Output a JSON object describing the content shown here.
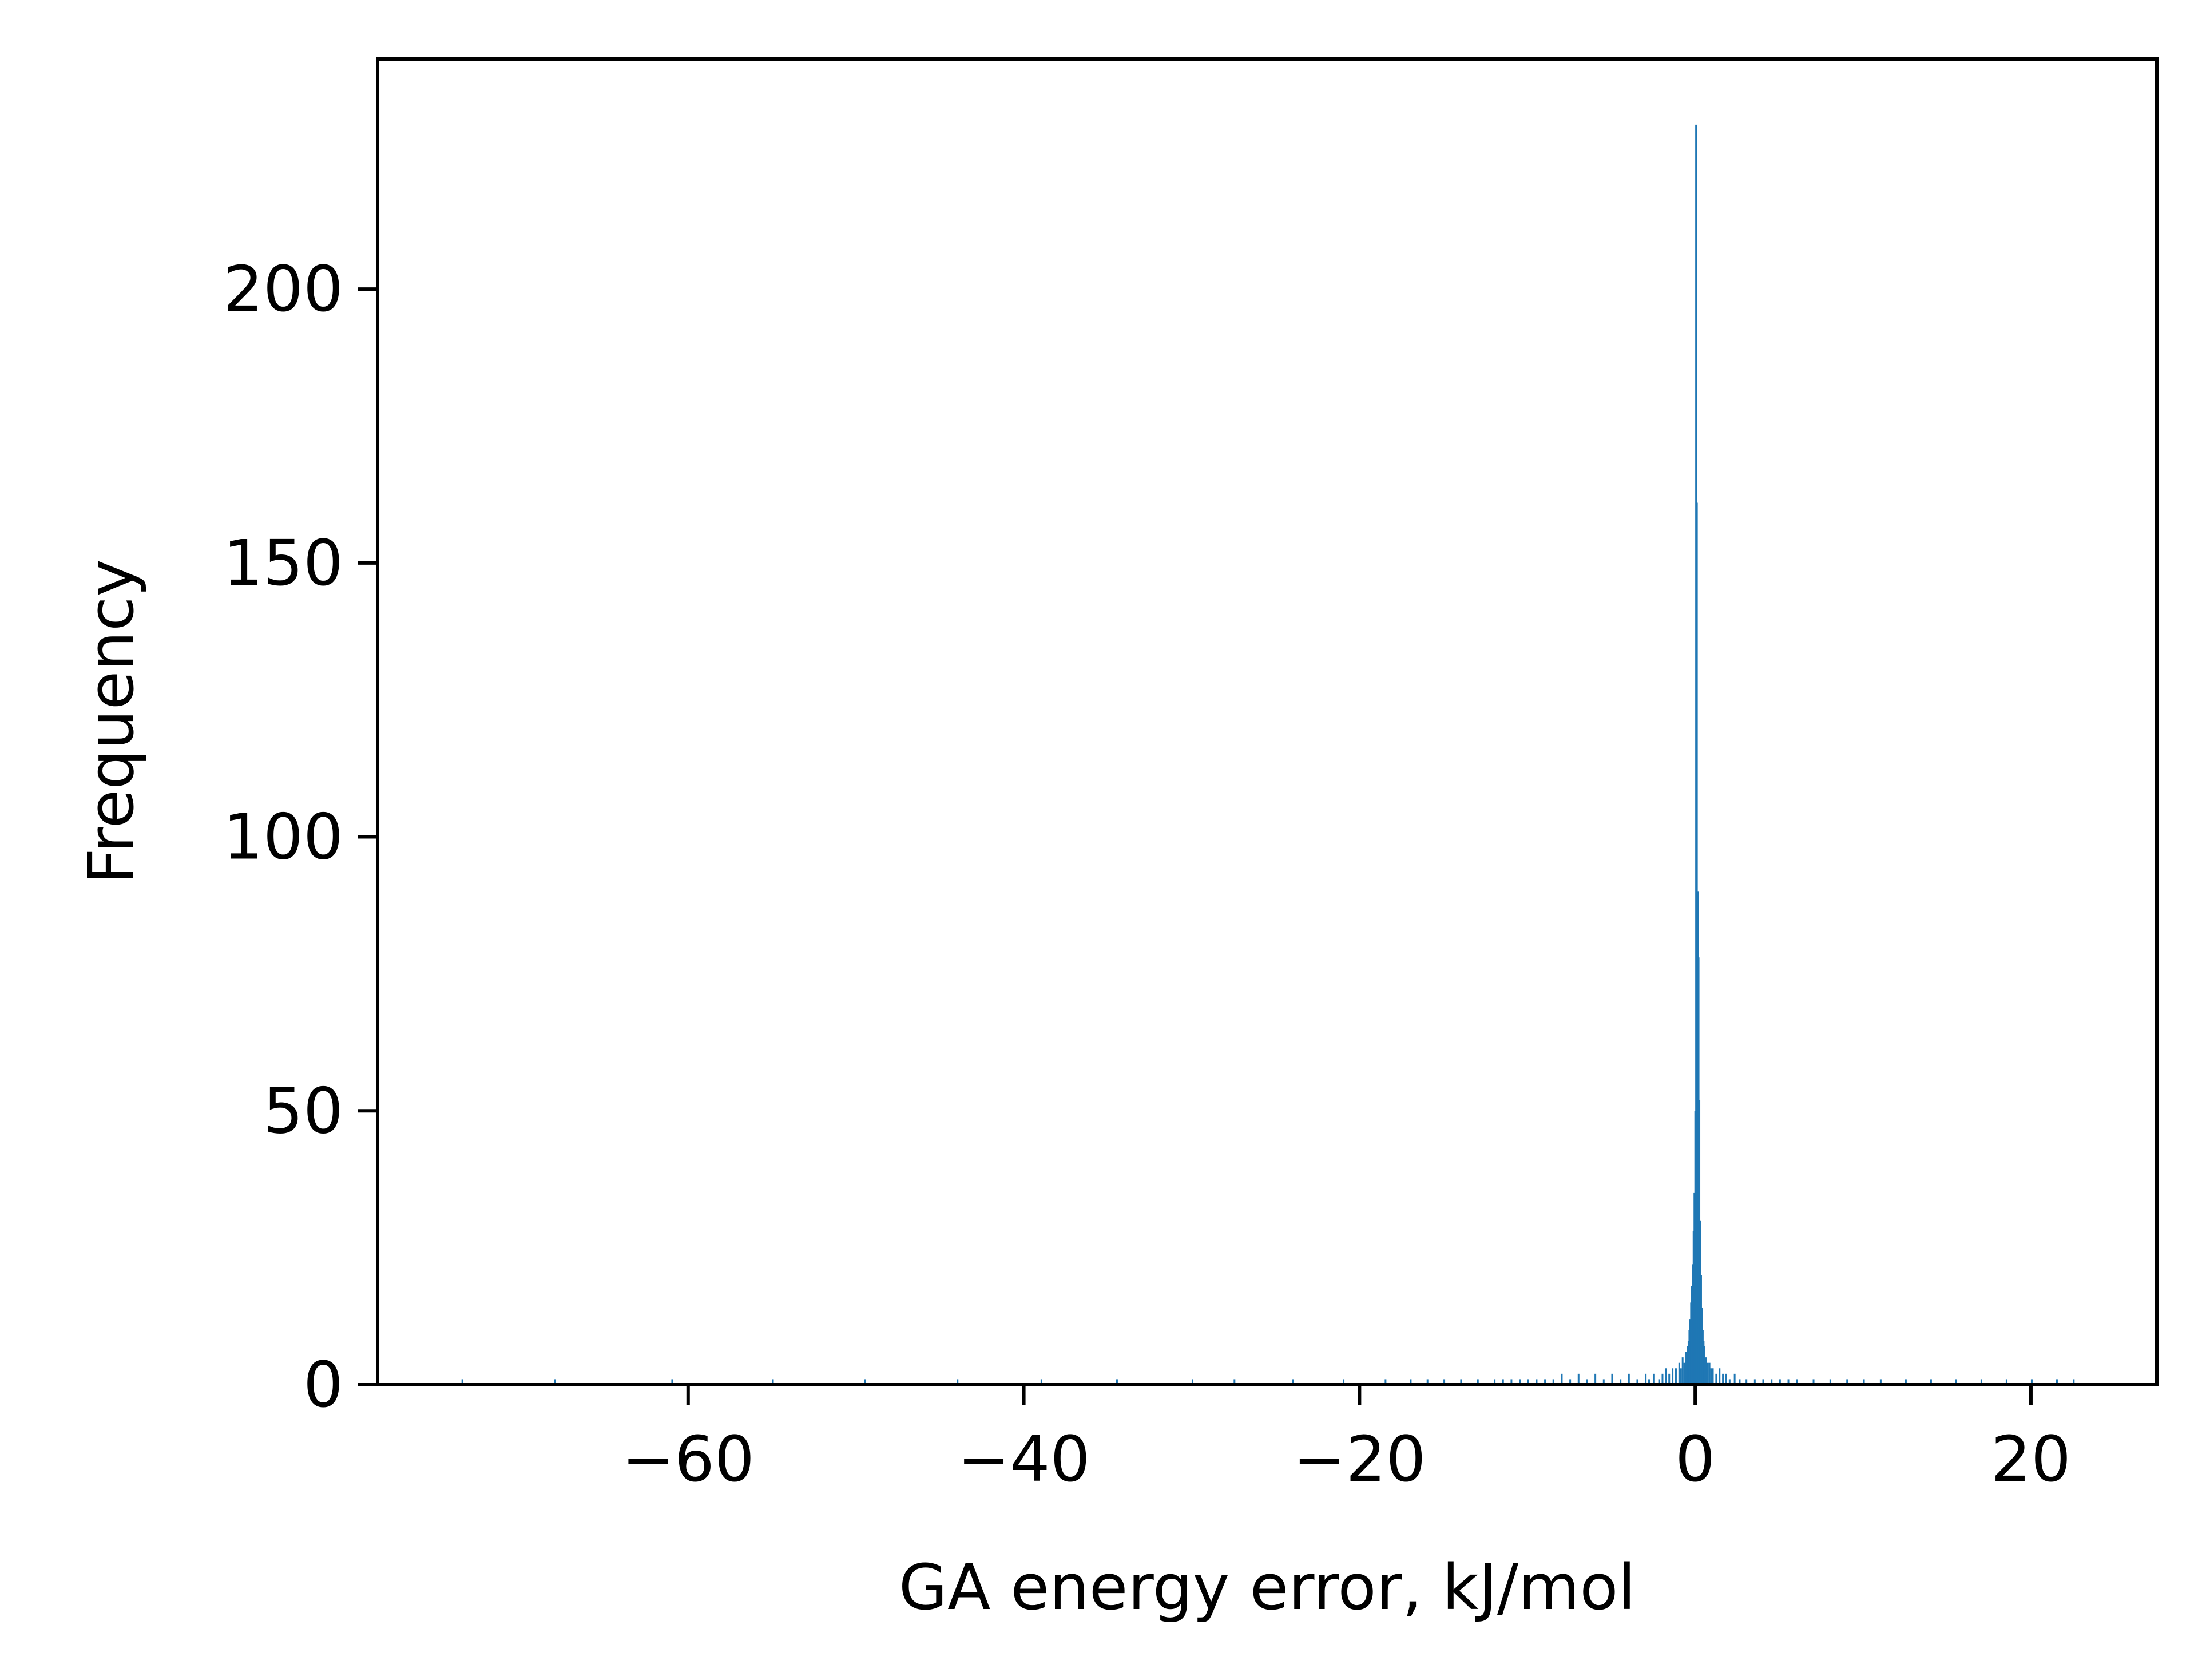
{
  "chart_data": {
    "type": "bar",
    "title": "",
    "xlabel": "GA energy error, kJ/mol",
    "ylabel": "Frequency",
    "xlim": [
      -78.5,
      27.5
    ],
    "ylim": [
      0,
      242
    ],
    "grid": false,
    "legend": "none",
    "xticks": [
      {
        "value": -60,
        "label": "−60"
      },
      {
        "value": -40,
        "label": "−40"
      },
      {
        "value": -20,
        "label": "−20"
      },
      {
        "value": 0,
        "label": "0"
      },
      {
        "value": 20,
        "label": "20"
      }
    ],
    "yticks": [
      {
        "value": 0,
        "label": "0"
      },
      {
        "value": 50,
        "label": "50"
      },
      {
        "value": 100,
        "label": "100"
      },
      {
        "value": 150,
        "label": "150"
      },
      {
        "value": 200,
        "label": "200"
      }
    ],
    "bin_width": 0.05,
    "series": [
      {
        "color": "#1f77b4",
        "bins": [
          [
            -73.5,
            1
          ],
          [
            -68.0,
            1
          ],
          [
            -61.0,
            1
          ],
          [
            -55.0,
            1
          ],
          [
            -49.5,
            1
          ],
          [
            -44.0,
            1
          ],
          [
            -39.0,
            1
          ],
          [
            -34.5,
            1
          ],
          [
            -30.0,
            1
          ],
          [
            -27.5,
            1
          ],
          [
            -24.0,
            1
          ],
          [
            -21.0,
            1
          ],
          [
            -18.5,
            1
          ],
          [
            -17.0,
            1
          ],
          [
            -16.0,
            1
          ],
          [
            -15.0,
            1
          ],
          [
            -14.0,
            1
          ],
          [
            -13.0,
            1
          ],
          [
            -12.0,
            1
          ],
          [
            -11.5,
            1
          ],
          [
            -11.0,
            1
          ],
          [
            -10.5,
            1
          ],
          [
            -10.0,
            1
          ],
          [
            -9.5,
            1
          ],
          [
            -9.0,
            1
          ],
          [
            -8.5,
            1
          ],
          [
            -8.0,
            2
          ],
          [
            -7.5,
            1
          ],
          [
            -7.0,
            2
          ],
          [
            -6.5,
            1
          ],
          [
            -6.0,
            2
          ],
          [
            -5.5,
            1
          ],
          [
            -5.0,
            2
          ],
          [
            -4.5,
            1
          ],
          [
            -4.0,
            2
          ],
          [
            -3.5,
            1
          ],
          [
            -3.0,
            2
          ],
          [
            -2.8,
            1
          ],
          [
            -2.5,
            2
          ],
          [
            -2.2,
            1
          ],
          [
            -2.0,
            2
          ],
          [
            -1.8,
            3
          ],
          [
            -1.6,
            2
          ],
          [
            -1.4,
            3
          ],
          [
            -1.2,
            3
          ],
          [
            -1.0,
            4
          ],
          [
            -0.9,
            3
          ],
          [
            -0.8,
            5
          ],
          [
            -0.7,
            4
          ],
          [
            -0.6,
            6
          ],
          [
            -0.5,
            7
          ],
          [
            -0.45,
            8
          ],
          [
            -0.4,
            10
          ],
          [
            -0.35,
            12
          ],
          [
            -0.3,
            15
          ],
          [
            -0.25,
            18
          ],
          [
            -0.2,
            22
          ],
          [
            -0.15,
            28
          ],
          [
            -0.1,
            35
          ],
          [
            -0.05,
            50
          ],
          [
            0.0,
            230
          ],
          [
            0.05,
            161
          ],
          [
            0.1,
            90
          ],
          [
            0.15,
            78
          ],
          [
            0.2,
            52
          ],
          [
            0.25,
            30
          ],
          [
            0.3,
            20
          ],
          [
            0.35,
            14
          ],
          [
            0.4,
            10
          ],
          [
            0.45,
            8
          ],
          [
            0.5,
            7
          ],
          [
            0.6,
            5
          ],
          [
            0.7,
            4
          ],
          [
            0.8,
            4
          ],
          [
            0.9,
            3
          ],
          [
            1.0,
            3
          ],
          [
            1.2,
            2
          ],
          [
            1.4,
            3
          ],
          [
            1.6,
            2
          ],
          [
            1.8,
            2
          ],
          [
            2.0,
            1
          ],
          [
            2.3,
            2
          ],
          [
            2.6,
            1
          ],
          [
            3.0,
            1
          ],
          [
            3.5,
            1
          ],
          [
            4.0,
            1
          ],
          [
            4.5,
            1
          ],
          [
            5.0,
            1
          ],
          [
            5.5,
            1
          ],
          [
            6.0,
            1
          ],
          [
            7.0,
            1
          ],
          [
            8.0,
            1
          ],
          [
            9.0,
            1
          ],
          [
            10.0,
            1
          ],
          [
            11.0,
            1
          ],
          [
            12.5,
            1
          ],
          [
            14.0,
            1
          ],
          [
            15.5,
            1
          ],
          [
            17.0,
            1
          ],
          [
            18.5,
            1
          ],
          [
            20.0,
            1
          ],
          [
            21.5,
            1
          ],
          [
            22.5,
            1
          ]
        ]
      }
    ]
  }
}
